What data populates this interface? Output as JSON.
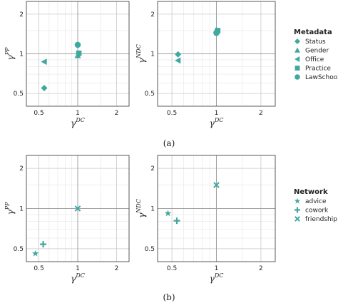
{
  "colors": {
    "marker": "#3fa8a0",
    "grid": "#c8c8c8",
    "ref": "#a0a0a0"
  },
  "captions": {
    "a": "(a)",
    "b": "(b)"
  },
  "legends": {
    "metadata": {
      "title": "Metadata",
      "items": [
        {
          "label": "Status",
          "marker": "diamond"
        },
        {
          "label": "Gender",
          "marker": "triangle-up"
        },
        {
          "label": "Office",
          "marker": "triangle-left"
        },
        {
          "label": "Practice",
          "marker": "square"
        },
        {
          "label": "LawSchool",
          "marker": "circle"
        }
      ]
    },
    "network": {
      "title": "Network",
      "items": [
        {
          "label": "advice",
          "marker": "star"
        },
        {
          "label": "cowork",
          "marker": "plus"
        },
        {
          "label": "friendship",
          "marker": "x"
        }
      ]
    }
  },
  "chart_data": [
    {
      "type": "scatter",
      "panel": "a-left",
      "xlabel": {
        "base": "γ",
        "sup": "DC"
      },
      "ylabel": {
        "base": "γ",
        "sup": "PP"
      },
      "xscale": "log",
      "yscale": "log",
      "xlim": [
        0.4,
        2.5
      ],
      "ylim": [
        0.4,
        2.5
      ],
      "xticks": [
        "0.5",
        "1",
        "2"
      ],
      "yticks": [
        "0.5",
        "1",
        "2"
      ],
      "grid": true,
      "reference_lines": {
        "x": 1,
        "y": 1
      },
      "points": [
        {
          "series": "Status",
          "marker": "diamond",
          "x": 0.55,
          "y": 0.55
        },
        {
          "series": "Gender",
          "marker": "triangle-up",
          "x": 1.0,
          "y": 0.97
        },
        {
          "series": "Office",
          "marker": "triangle-left",
          "x": 0.55,
          "y": 0.87
        },
        {
          "series": "Practice",
          "marker": "square",
          "x": 1.02,
          "y": 1.01
        },
        {
          "series": "LawSchool",
          "marker": "circle",
          "x": 1.0,
          "y": 1.17
        }
      ]
    },
    {
      "type": "scatter",
      "panel": "a-right",
      "xlabel": {
        "base": "γ",
        "sup": "DC"
      },
      "ylabel": {
        "base": "γ",
        "sup": "NDC"
      },
      "xscale": "log",
      "yscale": "log",
      "xlim": [
        0.4,
        2.5
      ],
      "ylim": [
        0.4,
        2.5
      ],
      "xticks": [
        "0.5",
        "1",
        "2"
      ],
      "yticks": [
        "0.5",
        "1",
        "2"
      ],
      "grid": true,
      "reference_lines": {
        "x": 1,
        "y": 1
      },
      "points": [
        {
          "series": "Status",
          "marker": "diamond",
          "x": 0.55,
          "y": 0.99
        },
        {
          "series": "Gender",
          "marker": "triangle-up",
          "x": 1.0,
          "y": 1.52
        },
        {
          "series": "Office",
          "marker": "triangle-left",
          "x": 0.55,
          "y": 0.89
        },
        {
          "series": "Practice",
          "marker": "square",
          "x": 1.02,
          "y": 1.5
        },
        {
          "series": "LawSchool",
          "marker": "circle",
          "x": 1.0,
          "y": 1.44
        }
      ]
    },
    {
      "type": "scatter",
      "panel": "b-left",
      "xlabel": {
        "base": "γ",
        "sup": "DC"
      },
      "ylabel": {
        "base": "γ",
        "sup": "PP"
      },
      "xscale": "log",
      "yscale": "log",
      "xlim": [
        0.4,
        2.5
      ],
      "ylim": [
        0.4,
        2.5
      ],
      "xticks": [
        "0.5",
        "1",
        "2"
      ],
      "yticks": [
        "0.5",
        "1",
        "2"
      ],
      "grid": true,
      "reference_lines": {
        "x": 1,
        "y": 1
      },
      "points": [
        {
          "series": "advice",
          "marker": "star",
          "x": 0.47,
          "y": 0.46
        },
        {
          "series": "cowork",
          "marker": "plus",
          "x": 0.54,
          "y": 0.54
        },
        {
          "series": "friendship",
          "marker": "x",
          "x": 1.0,
          "y": 1.0
        }
      ]
    },
    {
      "type": "scatter",
      "panel": "b-right",
      "xlabel": {
        "base": "γ",
        "sup": "DC"
      },
      "ylabel": {
        "base": "γ",
        "sup": "NDC"
      },
      "xscale": "log",
      "yscale": "log",
      "xlim": [
        0.4,
        2.5
      ],
      "ylim": [
        0.4,
        2.5
      ],
      "xticks": [
        "0.5",
        "1",
        "2"
      ],
      "yticks": [
        "0.5",
        "1",
        "2"
      ],
      "grid": true,
      "reference_lines": {
        "x": 1,
        "y": 1
      },
      "points": [
        {
          "series": "advice",
          "marker": "star",
          "x": 0.47,
          "y": 0.92
        },
        {
          "series": "cowork",
          "marker": "plus",
          "x": 0.54,
          "y": 0.81
        },
        {
          "series": "friendship",
          "marker": "x",
          "x": 1.0,
          "y": 1.5
        }
      ]
    }
  ]
}
